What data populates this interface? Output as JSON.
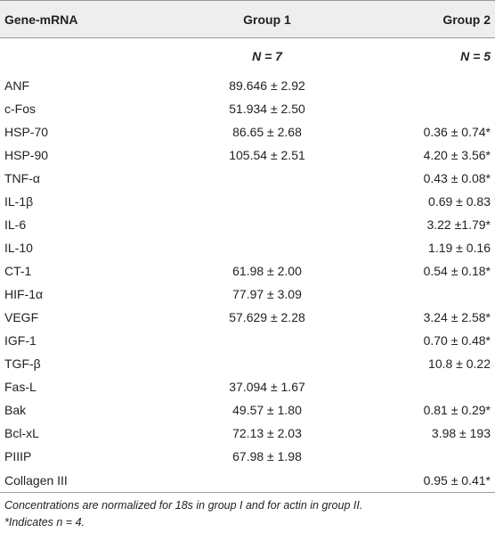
{
  "table": {
    "headers": {
      "gene": "Gene-mRNA",
      "group1": "Group 1",
      "group2": "Group 2"
    },
    "n_row": {
      "group1": "N = 7",
      "group2": "N = 5"
    },
    "rows": [
      {
        "gene": "ANF",
        "group1": "89.646 ± 2.92",
        "group2": ""
      },
      {
        "gene": "c-Fos",
        "group1": "51.934 ± 2.50",
        "group2": ""
      },
      {
        "gene": "HSP-70",
        "group1": "86.65 ± 2.68",
        "group2": "0.36 ± 0.74*"
      },
      {
        "gene": "HSP-90",
        "group1": "105.54 ± 2.51",
        "group2": "4.20 ± 3.56*"
      },
      {
        "gene": "TNF-α",
        "group1": "",
        "group2": "0.43 ± 0.08*"
      },
      {
        "gene": "IL-1β",
        "group1": "",
        "group2": "0.69 ± 0.83"
      },
      {
        "gene": "IL-6",
        "group1": "",
        "group2": "3.22 ±1.79*"
      },
      {
        "gene": "IL-10",
        "group1": "",
        "group2": "1.19 ± 0.16"
      },
      {
        "gene": "CT-1",
        "group1": "61.98 ± 2.00",
        "group2": "0.54 ± 0.18*"
      },
      {
        "gene": "HIF-1α",
        "group1": "77.97 ± 3.09",
        "group2": ""
      },
      {
        "gene": "VEGF",
        "group1": "57.629 ± 2.28",
        "group2": "3.24 ± 2.58*"
      },
      {
        "gene": "IGF-1",
        "group1": "",
        "group2": "0.70 ± 0.48*"
      },
      {
        "gene": "TGF-β",
        "group1": "",
        "group2": "10.8 ± 0.22"
      },
      {
        "gene": "Fas-L",
        "group1": "37.094 ± 1.67",
        "group2": ""
      },
      {
        "gene": "Bak",
        "group1": "49.57 ± 1.80",
        "group2": "0.81 ± 0.29*"
      },
      {
        "gene": "Bcl-xL",
        "group1": "72.13 ± 2.03",
        "group2": "3.98 ± 193"
      },
      {
        "gene": "PIIIP",
        "group1": "67.98 ± 1.98",
        "group2": ""
      },
      {
        "gene": "Collagen III",
        "group1": "",
        "group2": "0.95 ± 0.41*"
      }
    ]
  },
  "footnotes": [
    "Concentrations are normalized for 18s in group I and for actin in group II.",
    "*Indicates n = 4."
  ]
}
